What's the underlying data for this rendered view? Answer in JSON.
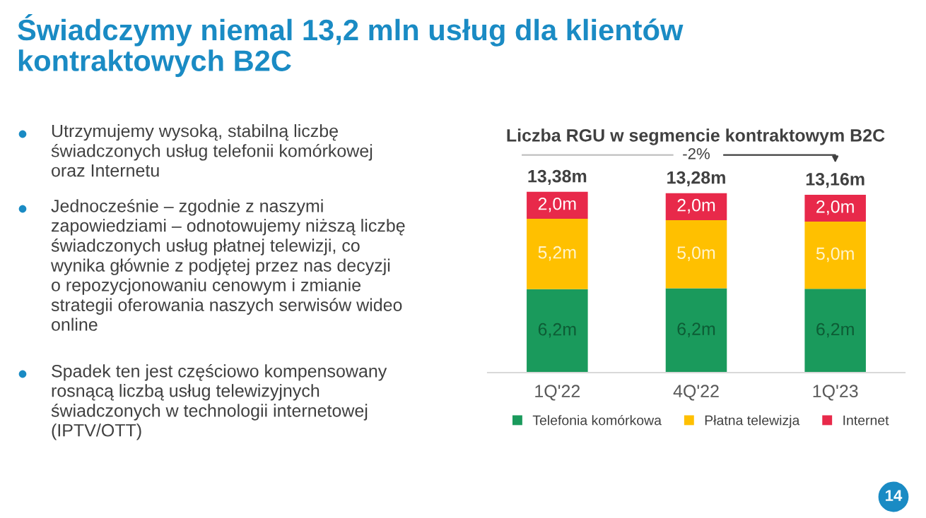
{
  "chart_data": {
    "type": "bar",
    "stacked": true,
    "title": "Liczba RGU w segmencie kontraktowym B2C",
    "categories": [
      "1Q'22",
      "4Q'22",
      "1Q'23"
    ],
    "series": [
      {
        "name": "Telefonia komórkowa",
        "color": "#1a9a5c",
        "values": [
          6.18,
          6.24,
          6.2
        ],
        "value_labels": [
          "6,2m",
          "6,2m",
          "6,2m"
        ]
      },
      {
        "name": "Płatna telewizja",
        "color": "#ffc000",
        "values": [
          5.2,
          5.04,
          4.98
        ],
        "value_labels": [
          "5,2m",
          "5,0m",
          "5,0m"
        ]
      },
      {
        "name": "Internet",
        "color": "#e8294a",
        "values": [
          2.0,
          2.0,
          1.98
        ],
        "value_labels": [
          "2,0m",
          "2,0m",
          "2,0m"
        ]
      }
    ],
    "totals": [
      "13,38m",
      "13,28m",
      "13,16m"
    ],
    "legend": "bottom",
    "grid": false,
    "annotations": [
      "Świadczymy niemal 13,2 mln usług dla klientów\nkontraktowych B2C",
      "Utrzymujemy wysoką, stabilną liczbę\nświadczonych usług telefonii komórkowej\noraz Internetu",
      "Jednocześnie – zgodnie z naszymi\nzapowiedziami – odnotowujemy niższą liczbę\nświadczonych usług płatnej telewizji, co\nwynika głównie z podjętej przez nas decyzji\no repozycjonowaniu cenowym i zmianie\nstrategii oferowania naszych serwisów wideo\nonline",
      "Spadek ten jest częściowo kompensowany\nrosnącą liczbą usług telewizyjnych\nświadczonych w technologii internetowej\n(IPTV/OTT)",
      "-2%",
      "14"
    ]
  }
}
